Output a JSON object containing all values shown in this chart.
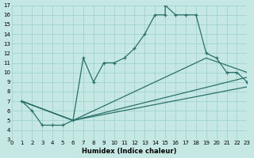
{
  "xlabel": "Humidex (Indice chaleur)",
  "xlim": [
    0,
    23
  ],
  "ylim": [
    3,
    17
  ],
  "xticks": [
    0,
    1,
    2,
    3,
    4,
    5,
    6,
    7,
    8,
    9,
    10,
    11,
    12,
    13,
    14,
    15,
    16,
    17,
    18,
    19,
    20,
    21,
    22,
    23
  ],
  "yticks": [
    3,
    4,
    5,
    6,
    7,
    8,
    9,
    10,
    11,
    12,
    13,
    14,
    15,
    16,
    17
  ],
  "background_color": "#c6e8e4",
  "grid_color": "#9ecfca",
  "line_color": "#2a7068",
  "curve_x": [
    1,
    2,
    3,
    4,
    5,
    6,
    7,
    8,
    9,
    10,
    11,
    12,
    13,
    14,
    15,
    15,
    16,
    17,
    18,
    19,
    20,
    21,
    22,
    23
  ],
  "curve_y": [
    7,
    6,
    4.5,
    4.5,
    4.5,
    5,
    11.5,
    9,
    11,
    11,
    11.5,
    12.5,
    14,
    16,
    16,
    17,
    16,
    16,
    16,
    12,
    11.5,
    10,
    10,
    9
  ],
  "line1_x": [
    1,
    6,
    23
  ],
  "line1_y": [
    7,
    5,
    9.5
  ],
  "line2_x": [
    1,
    6,
    19,
    23
  ],
  "line2_y": [
    7,
    5,
    11.5,
    10
  ],
  "line3_x": [
    1,
    6,
    23
  ],
  "line3_y": [
    7,
    5,
    8.5
  ]
}
